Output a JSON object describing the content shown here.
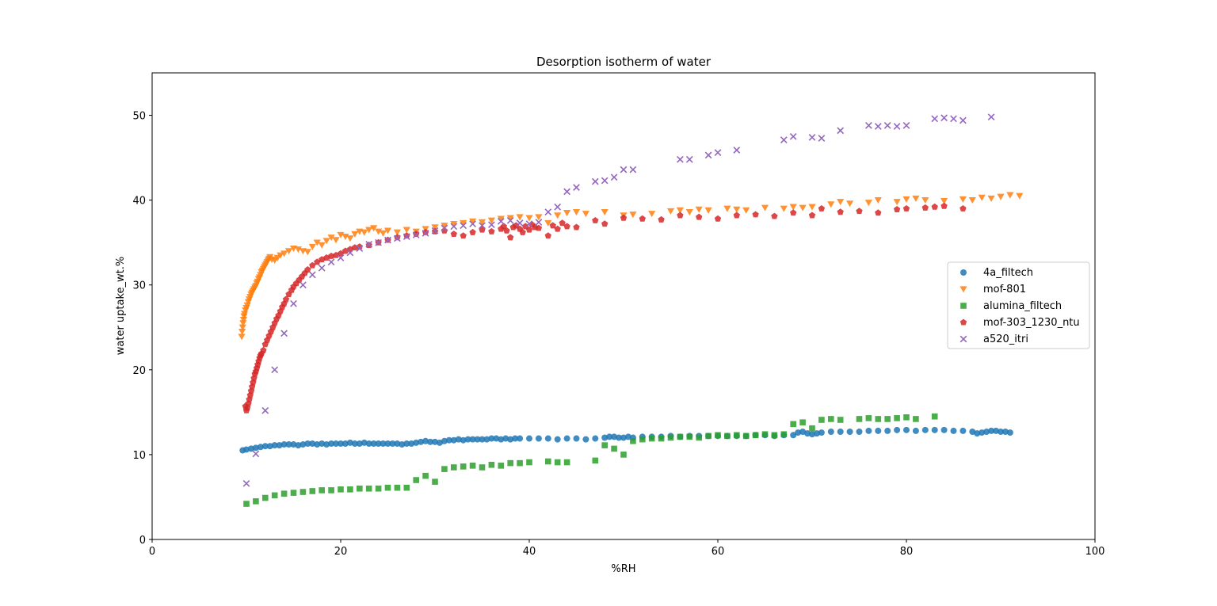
{
  "chart_data": {
    "type": "scatter",
    "title": "Desorption isotherm of water",
    "xlabel": "%RH",
    "ylabel": "water uptake_wt.%",
    "xlim": [
      0,
      100
    ],
    "ylim": [
      0,
      55
    ],
    "xticks": [
      0,
      20,
      40,
      60,
      80,
      100
    ],
    "yticks": [
      0,
      10,
      20,
      30,
      40,
      50
    ],
    "grid": false,
    "legend_position": "center-right",
    "series": [
      {
        "name": "4a_filtech",
        "color": "#1f77b4",
        "marker": "circle",
        "x": [
          9.6,
          10,
          10.5,
          11,
          11.5,
          12,
          12.5,
          13,
          13.5,
          14,
          14.5,
          15,
          15.5,
          16,
          16.5,
          17,
          17.5,
          18,
          18.5,
          19,
          19.5,
          20,
          20.5,
          21,
          21.5,
          22,
          22.5,
          23,
          23.5,
          24,
          24.5,
          25,
          25.5,
          26,
          26.5,
          27,
          27.5,
          28,
          28.5,
          29,
          29.5,
          30,
          30.5,
          31,
          31.5,
          32,
          32.5,
          33,
          33.5,
          34,
          34.5,
          35,
          35.5,
          36,
          36.5,
          37,
          37.5,
          38,
          38.5,
          39,
          40,
          41,
          42,
          43,
          44,
          45,
          46,
          47,
          48,
          48.5,
          49,
          49.5,
          50,
          50.5,
          51,
          52,
          53,
          54,
          55,
          56,
          57,
          58,
          59,
          60,
          61,
          62,
          63,
          64,
          65,
          66,
          67,
          68,
          68.5,
          69,
          69.5,
          70,
          70.5,
          71,
          72,
          73,
          74,
          75,
          76,
          77,
          78,
          79,
          80,
          81,
          82,
          83,
          84,
          85,
          86,
          87,
          87.5,
          88,
          88.5,
          89,
          89.5,
          90,
          90.5,
          91
        ],
        "y": [
          10.5,
          10.6,
          10.7,
          10.8,
          10.9,
          11.0,
          11.0,
          11.1,
          11.1,
          11.2,
          11.2,
          11.2,
          11.1,
          11.2,
          11.3,
          11.3,
          11.2,
          11.3,
          11.2,
          11.3,
          11.3,
          11.3,
          11.3,
          11.4,
          11.3,
          11.3,
          11.4,
          11.3,
          11.3,
          11.3,
          11.3,
          11.3,
          11.3,
          11.3,
          11.2,
          11.3,
          11.3,
          11.4,
          11.5,
          11.6,
          11.5,
          11.5,
          11.4,
          11.6,
          11.7,
          11.7,
          11.8,
          11.7,
          11.8,
          11.8,
          11.8,
          11.8,
          11.8,
          11.9,
          11.9,
          11.8,
          11.9,
          11.8,
          11.9,
          11.9,
          11.9,
          11.9,
          11.9,
          11.8,
          11.9,
          11.9,
          11.8,
          11.9,
          12.0,
          12.1,
          12.1,
          12.0,
          12.0,
          12.1,
          12.0,
          12.1,
          12.1,
          12.1,
          12.2,
          12.1,
          12.2,
          12.2,
          12.2,
          12.2,
          12.2,
          12.2,
          12.2,
          12.3,
          12.3,
          12.2,
          12.3,
          12.3,
          12.6,
          12.7,
          12.5,
          12.4,
          12.5,
          12.6,
          12.7,
          12.7,
          12.7,
          12.7,
          12.8,
          12.8,
          12.8,
          12.9,
          12.9,
          12.8,
          12.9,
          12.9,
          12.9,
          12.8,
          12.8,
          12.7,
          12.5,
          12.6,
          12.7,
          12.8,
          12.8,
          12.7,
          12.7,
          12.6
        ]
      },
      {
        "name": "mof-801",
        "color": "#ff7f0e",
        "marker": "triangle-down",
        "x": [
          9.5,
          9.55,
          9.6,
          9.65,
          9.7,
          9.75,
          9.8,
          9.9,
          10.0,
          10.1,
          10.2,
          10.3,
          10.4,
          10.5,
          10.6,
          10.7,
          10.8,
          10.9,
          11.0,
          11.1,
          11.2,
          11.3,
          11.4,
          11.5,
          11.6,
          11.7,
          11.8,
          11.9,
          12.0,
          12.1,
          12.2,
          12.3,
          12.4,
          12.5,
          12.7,
          13.0,
          13.3,
          13.6,
          14.0,
          14.5,
          15.0,
          15.5,
          16.0,
          16.5,
          17.0,
          17.5,
          18.0,
          18.5,
          19.0,
          19.5,
          20.0,
          20.5,
          21.0,
          21.5,
          22.0,
          22.5,
          23.0,
          23.5,
          24.0,
          24.5,
          25.0,
          26,
          27,
          28,
          29,
          30,
          31,
          32,
          33,
          34,
          35,
          36,
          37,
          38,
          39,
          40,
          41,
          42,
          43,
          44,
          45,
          46,
          48,
          50,
          51,
          53,
          55,
          56,
          57,
          58,
          59,
          61,
          62,
          63,
          65,
          67,
          68,
          69,
          70,
          72,
          73,
          74,
          76,
          77,
          79,
          80,
          81,
          82,
          84,
          86,
          87,
          88,
          89,
          90,
          91,
          92
        ],
        "y": [
          23.9,
          24.5,
          25.0,
          25.5,
          25.9,
          26.3,
          26.6,
          27.0,
          27.3,
          27.6,
          28.0,
          28.3,
          28.6,
          28.9,
          29.1,
          29.3,
          29.5,
          29.7,
          29.9,
          30.2,
          30.4,
          30.7,
          30.9,
          31.2,
          31.5,
          31.7,
          31.9,
          32.1,
          32.3,
          32.5,
          32.7,
          32.9,
          33.1,
          33.3,
          33.0,
          32.9,
          33.2,
          33.5,
          33.7,
          34.0,
          34.3,
          34.2,
          34.0,
          33.9,
          34.5,
          35.0,
          34.7,
          35.2,
          35.6,
          35.3,
          35.9,
          35.7,
          35.5,
          36.0,
          36.3,
          36.2,
          36.5,
          36.7,
          36.3,
          36.1,
          36.4,
          36.2,
          36.5,
          36.3,
          36.6,
          36.8,
          37.0,
          37.2,
          37.3,
          37.5,
          37.4,
          37.6,
          37.8,
          37.9,
          38.0,
          37.9,
          38.0,
          37.3,
          38.2,
          38.5,
          38.6,
          38.4,
          38.6,
          38.2,
          38.3,
          38.4,
          38.7,
          38.8,
          38.6,
          38.9,
          38.8,
          39.0,
          38.9,
          38.8,
          39.1,
          39.0,
          39.2,
          39.1,
          39.2,
          39.5,
          39.8,
          39.6,
          39.7,
          40.0,
          39.8,
          40.1,
          40.2,
          40.0,
          39.9,
          40.1,
          40.0,
          40.3,
          40.2,
          40.4,
          40.6,
          40.5
        ]
      },
      {
        "name": "alumina_filtech",
        "color": "#2ca02c",
        "marker": "square",
        "x": [
          10,
          11,
          12,
          13,
          14,
          15,
          16,
          17,
          18,
          19,
          20,
          21,
          22,
          23,
          24,
          25,
          26,
          27,
          28,
          29,
          30,
          31,
          32,
          33,
          34,
          35,
          36,
          37,
          38,
          39,
          40,
          42,
          43,
          44,
          47,
          48,
          49,
          50,
          51,
          52,
          53,
          54,
          55,
          56,
          57,
          58,
          59,
          60,
          61,
          62,
          63,
          64,
          65,
          66,
          67,
          68,
          69,
          70,
          71,
          72,
          73,
          75,
          76,
          77,
          78,
          79,
          80,
          81,
          83
        ],
        "y": [
          4.2,
          4.5,
          4.9,
          5.2,
          5.4,
          5.5,
          5.6,
          5.7,
          5.8,
          5.8,
          5.9,
          5.9,
          6.0,
          6.0,
          6.0,
          6.1,
          6.1,
          6.1,
          7.0,
          7.5,
          6.8,
          8.3,
          8.5,
          8.6,
          8.7,
          8.5,
          8.8,
          8.7,
          9.0,
          9.0,
          9.1,
          9.2,
          9.1,
          9.1,
          9.3,
          11.1,
          10.7,
          10.0,
          11.6,
          11.8,
          11.9,
          11.9,
          12.0,
          12.1,
          12.1,
          12.0,
          12.2,
          12.3,
          12.2,
          12.3,
          12.2,
          12.3,
          12.4,
          12.3,
          12.4,
          13.6,
          13.8,
          13.1,
          14.1,
          14.2,
          14.1,
          14.2,
          14.3,
          14.2,
          14.2,
          14.3,
          14.4,
          14.2,
          14.5
        ]
      },
      {
        "name": "mof-303_1230_ntu",
        "color": "#d62728",
        "marker": "pentagon",
        "x": [
          9.9,
          10.0,
          10.1,
          10.2,
          10.3,
          10.4,
          10.5,
          10.6,
          10.7,
          10.8,
          10.9,
          11.0,
          11.1,
          11.2,
          11.3,
          11.4,
          11.5,
          11.6,
          11.8,
          12.0,
          12.2,
          12.4,
          12.6,
          12.8,
          13.0,
          13.2,
          13.4,
          13.6,
          13.8,
          14.0,
          14.2,
          14.5,
          14.8,
          15.0,
          15.3,
          15.6,
          15.9,
          16.2,
          16.5,
          17.0,
          17.5,
          18,
          18.5,
          19,
          19.5,
          20,
          20.5,
          21,
          21.5,
          22,
          23,
          24,
          25,
          26,
          27,
          28,
          29,
          30,
          31,
          32,
          33,
          34,
          35,
          36,
          37,
          37.3,
          37.6,
          38,
          38.3,
          38.6,
          39,
          39.3,
          39.6,
          40,
          40.3,
          40.6,
          41,
          42,
          42.5,
          43,
          43.5,
          44,
          45,
          47,
          48,
          50,
          52,
          54,
          56,
          58,
          60,
          62,
          64,
          66,
          68,
          70,
          71,
          73,
          75,
          77,
          79,
          80,
          82,
          83,
          84,
          86
        ],
        "y": [
          15.7,
          15.2,
          15.5,
          16.0,
          16.5,
          17.0,
          17.5,
          18.0,
          18.5,
          19.0,
          19.5,
          19.8,
          20.2,
          20.6,
          21.0,
          21.4,
          21.7,
          21.9,
          22.3,
          23.0,
          23.5,
          24.0,
          24.5,
          25.0,
          25.5,
          26.0,
          26.4,
          26.9,
          27.4,
          27.8,
          28.3,
          28.9,
          29.4,
          29.8,
          30.2,
          30.6,
          31.0,
          31.4,
          31.8,
          32.3,
          32.7,
          33.0,
          33.2,
          33.4,
          33.5,
          33.7,
          34.0,
          34.2,
          34.4,
          34.5,
          34.7,
          35.0,
          35.3,
          35.6,
          35.8,
          36.0,
          36.2,
          36.3,
          36.4,
          36.0,
          35.8,
          36.2,
          36.5,
          36.3,
          36.6,
          36.9,
          36.4,
          35.6,
          36.8,
          37.0,
          36.6,
          36.2,
          36.9,
          36.5,
          37.1,
          36.8,
          36.7,
          35.8,
          37.0,
          36.6,
          37.3,
          36.9,
          36.8,
          37.6,
          37.2,
          37.9,
          37.8,
          37.7,
          38.2,
          38.0,
          37.8,
          38.2,
          38.3,
          38.1,
          38.5,
          38.2,
          39.0,
          38.6,
          38.7,
          38.5,
          38.9,
          39.0,
          39.1,
          39.2,
          39.3,
          39.0
        ]
      },
      {
        "name": "a520_itri",
        "color": "#9467bd",
        "marker": "x",
        "x": [
          10,
          11,
          12,
          13,
          14,
          15,
          16,
          17,
          18,
          19,
          20,
          21,
          22,
          23,
          24,
          25,
          26,
          27,
          28,
          29,
          30,
          31,
          32,
          33,
          34,
          35,
          36,
          37,
          38,
          39,
          40,
          41,
          42,
          43,
          44,
          45,
          47,
          48,
          49,
          50,
          51,
          56,
          57,
          59,
          60,
          62,
          67,
          68,
          70,
          71,
          73,
          76,
          77,
          78,
          79,
          80,
          83,
          84,
          85,
          86,
          89
        ],
        "y": [
          6.6,
          10.1,
          15.2,
          20.0,
          24.3,
          27.8,
          30.0,
          31.2,
          32.0,
          32.7,
          33.2,
          33.8,
          34.3,
          34.8,
          35.0,
          35.3,
          35.5,
          35.7,
          35.9,
          36.1,
          36.4,
          36.7,
          36.9,
          37.0,
          37.2,
          37.0,
          37.1,
          37.5,
          37.6,
          37.3,
          37.2,
          37.4,
          38.6,
          39.2,
          41.0,
          41.5,
          42.2,
          42.3,
          42.7,
          43.6,
          43.6,
          44.8,
          44.8,
          45.3,
          45.6,
          45.9,
          47.1,
          47.5,
          47.4,
          47.3,
          48.2,
          48.8,
          48.7,
          48.8,
          48.7,
          48.8,
          49.6,
          49.7,
          49.6,
          49.4,
          49.8
        ]
      }
    ]
  }
}
